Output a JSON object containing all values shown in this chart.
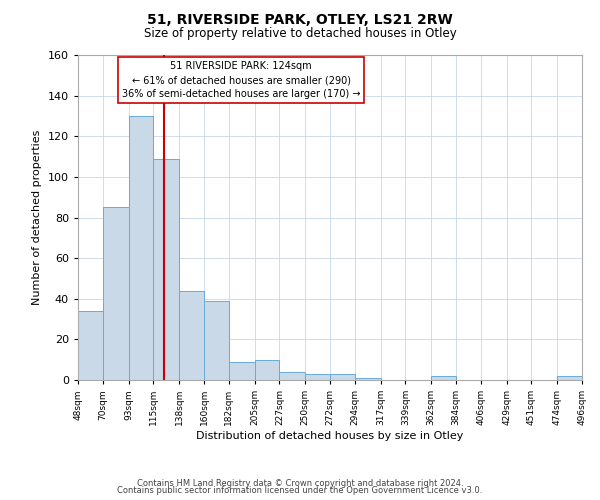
{
  "title": "51, RIVERSIDE PARK, OTLEY, LS21 2RW",
  "subtitle": "Size of property relative to detached houses in Otley",
  "xlabel": "Distribution of detached houses by size in Otley",
  "ylabel": "Number of detached properties",
  "bin_edges": [
    48,
    70,
    93,
    115,
    138,
    160,
    182,
    205,
    227,
    250,
    272,
    294,
    317,
    339,
    362,
    384,
    406,
    429,
    451,
    474,
    496
  ],
  "bin_counts": [
    34,
    85,
    130,
    109,
    44,
    39,
    9,
    10,
    4,
    3,
    3,
    1,
    0,
    0,
    2,
    0,
    0,
    0,
    0,
    2
  ],
  "bar_facecolor": "#c9d9e8",
  "bar_edgecolor": "#6aaad4",
  "property_size": 124,
  "vline_color": "#cc0000",
  "annotation_box_edgecolor": "#cc0000",
  "annotation_lines": [
    "51 RIVERSIDE PARK: 124sqm",
    "← 61% of detached houses are smaller (290)",
    "36% of semi-detached houses are larger (170) →"
  ],
  "ylim": [
    0,
    160
  ],
  "yticks": [
    0,
    20,
    40,
    60,
    80,
    100,
    120,
    140,
    160
  ],
  "tick_labels": [
    "48sqm",
    "70sqm",
    "93sqm",
    "115sqm",
    "138sqm",
    "160sqm",
    "182sqm",
    "205sqm",
    "227sqm",
    "250sqm",
    "272sqm",
    "294sqm",
    "317sqm",
    "339sqm",
    "362sqm",
    "384sqm",
    "406sqm",
    "429sqm",
    "451sqm",
    "474sqm",
    "496sqm"
  ],
  "footer_line1": "Contains HM Land Registry data © Crown copyright and database right 2024.",
  "footer_line2": "Contains public sector information licensed under the Open Government Licence v3.0.",
  "background_color": "#ffffff",
  "grid_color": "#c8d8e8"
}
